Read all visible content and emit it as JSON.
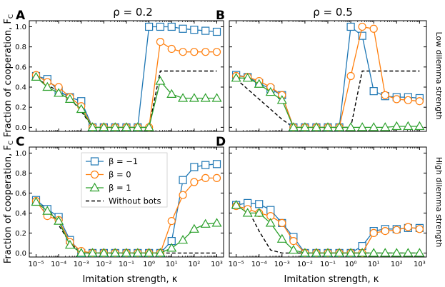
{
  "figure": {
    "column_titles": [
      "ρ = 0.2",
      "ρ = 0.5"
    ],
    "row_titles": [
      "Low dilemma strength",
      "High dilemma strength"
    ],
    "ylabel": "Fraction of cooperation, F",
    "ylabel_sub": "C",
    "xlabel": "Imitation strength, κ"
  },
  "legend": [
    {
      "name": "β = −1",
      "color": "#1f77b4",
      "marker": "square"
    },
    {
      "name": "β = 0",
      "color": "#ff7f0e",
      "marker": "circle"
    },
    {
      "name": "β = 1",
      "color": "#2ca02c",
      "marker": "triangle"
    },
    {
      "name": "Without bots",
      "color": "#000000",
      "marker": "dashed"
    }
  ],
  "colors": {
    "beta_neg1": "#1f77b4",
    "beta_0": "#ff7f0e",
    "beta_1": "#2ca02c",
    "baseline": "#000000"
  },
  "chart_data": [
    {
      "panel": "A",
      "type": "line",
      "x_scale": "log10",
      "x_exponents": [
        -5,
        -4.5,
        -4,
        -3.5,
        -3,
        -2.5,
        -2,
        -1.5,
        -1,
        -0.5,
        0,
        0.5,
        1,
        1.5,
        2,
        2.5,
        3
      ],
      "xlim": [
        -5.3,
        3.3
      ],
      "ylim": [
        -0.04,
        1.06
      ],
      "xticks": [
        "10⁻⁵",
        "10⁻⁴",
        "10⁻³",
        "10⁻²",
        "10⁻¹",
        "10⁰",
        "10¹",
        "10²",
        "10³"
      ],
      "yticks": [
        "0.0",
        "0.2",
        "0.4",
        "0.6",
        "0.8",
        "1.0"
      ],
      "series": [
        {
          "name": "β = −1",
          "values": [
            0.51,
            0.48,
            0.36,
            0.3,
            0.26,
            0.0,
            0.0,
            0.0,
            0.0,
            0.0,
            1.0,
            1.0,
            1.0,
            0.98,
            0.97,
            0.96,
            0.95
          ]
        },
        {
          "name": "β = 0",
          "values": [
            0.52,
            0.45,
            0.4,
            0.3,
            0.21,
            0.0,
            0.0,
            0.0,
            0.0,
            0.0,
            0.0,
            0.85,
            0.78,
            0.75,
            0.75,
            0.75,
            0.75
          ]
        },
        {
          "name": "β = 1",
          "values": [
            0.5,
            0.4,
            0.34,
            0.28,
            0.18,
            0.0,
            0.0,
            0.0,
            0.0,
            0.0,
            0.0,
            0.46,
            0.33,
            0.29,
            0.29,
            0.29,
            0.29
          ]
        },
        {
          "name": "Without bots",
          "values": [
            0.49,
            0.42,
            0.36,
            0.29,
            0.16,
            0.0,
            0.0,
            0.0,
            0.0,
            0.0,
            0.0,
            0.56,
            0.56,
            0.56,
            0.56,
            0.56,
            0.56
          ]
        }
      ]
    },
    {
      "panel": "B",
      "type": "line",
      "x_scale": "log10",
      "x_exponents": [
        -5,
        -4.5,
        -4,
        -3.5,
        -3,
        -2.5,
        -2,
        -1.5,
        -1,
        -0.5,
        0,
        0.5,
        1,
        1.5,
        2,
        2.5,
        3
      ],
      "xlim": [
        -5.3,
        3.3
      ],
      "ylim": [
        -0.04,
        1.06
      ],
      "xticks": [
        "10⁻⁵",
        "10⁻⁴",
        "10⁻³",
        "10⁻²",
        "10⁻¹",
        "10⁰",
        "10¹",
        "10²",
        "10³"
      ],
      "yticks": [
        "0.0",
        "0.2",
        "0.4",
        "0.6",
        "0.8",
        "1.0"
      ],
      "series": [
        {
          "name": "β = −1",
          "values": [
            0.52,
            0.5,
            0.44,
            0.38,
            0.32,
            0.0,
            0.0,
            0.0,
            0.0,
            0.0,
            1.0,
            0.91,
            0.36,
            0.31,
            0.3,
            0.3,
            0.29
          ]
        },
        {
          "name": "β = 0",
          "values": [
            0.51,
            0.5,
            0.46,
            0.4,
            0.32,
            0.0,
            0.0,
            0.0,
            0.0,
            0.0,
            0.51,
            1.0,
            0.98,
            0.32,
            0.28,
            0.27,
            0.26
          ]
        },
        {
          "name": "β = 1",
          "values": [
            0.49,
            0.49,
            0.43,
            0.35,
            0.27,
            0.0,
            0.0,
            0.0,
            0.0,
            0.0,
            0.0,
            0.0,
            0.0,
            0.0,
            0.01,
            0.01,
            0.01
          ]
        },
        {
          "name": "Without bots",
          "values": [
            0.48,
            0.38,
            0.28,
            0.18,
            0.08,
            0.0,
            0.0,
            0.0,
            0.0,
            0.0,
            0.0,
            0.56,
            0.56,
            0.56,
            0.56,
            0.56,
            0.56
          ]
        }
      ]
    },
    {
      "panel": "C",
      "type": "line",
      "x_scale": "log10",
      "x_exponents": [
        -5,
        -4.5,
        -4,
        -3.5,
        -3,
        -2.5,
        -2,
        -1.5,
        -1,
        -0.5,
        0,
        0.5,
        1,
        1.5,
        2,
        2.5,
        3
      ],
      "xlim": [
        -5.3,
        3.3
      ],
      "ylim": [
        -0.04,
        1.06
      ],
      "xticks": [
        "10⁻⁵",
        "10⁻⁴",
        "10⁻³",
        "10⁻²",
        "10⁻¹",
        "10⁰",
        "10¹",
        "10²",
        "10³"
      ],
      "yticks": [
        "0.0",
        "0.2",
        "0.4",
        "0.6",
        "0.8",
        "1.0"
      ],
      "series": [
        {
          "name": "β = −1",
          "values": [
            0.53,
            0.44,
            0.36,
            0.13,
            0.0,
            0.0,
            0.0,
            0.0,
            0.0,
            0.0,
            0.0,
            0.0,
            0.12,
            0.73,
            0.86,
            0.88,
            0.89
          ]
        },
        {
          "name": "β = 0",
          "values": [
            0.52,
            0.37,
            0.33,
            0.11,
            0.02,
            0.0,
            0.0,
            0.0,
            0.0,
            0.0,
            0.0,
            0.0,
            0.32,
            0.58,
            0.71,
            0.75,
            0.75
          ]
        },
        {
          "name": "β = 1",
          "values": [
            0.51,
            0.42,
            0.32,
            0.08,
            0.0,
            0.0,
            0.0,
            0.0,
            0.0,
            0.0,
            0.0,
            0.0,
            0.05,
            0.13,
            0.24,
            0.29,
            0.3
          ]
        },
        {
          "name": "Without bots",
          "values": [
            0.49,
            0.46,
            0.28,
            0.1,
            0.0,
            0.0,
            0.0,
            0.0,
            0.0,
            0.0,
            0.0,
            0.0,
            0.0,
            0.0,
            0.0,
            0.0,
            0.0
          ]
        }
      ]
    },
    {
      "panel": "D",
      "type": "line",
      "x_scale": "log10",
      "x_exponents": [
        -5,
        -4.5,
        -4,
        -3.5,
        -3,
        -2.5,
        -2,
        -1.5,
        -1,
        -0.5,
        0,
        0.5,
        1,
        1.5,
        2,
        2.5,
        3
      ],
      "xlim": [
        -5.3,
        3.3
      ],
      "ylim": [
        -0.04,
        1.06
      ],
      "xticks": [
        "10⁻⁵",
        "10⁻⁴",
        "10⁻³",
        "10⁻²",
        "10⁻¹",
        "10⁰",
        "10¹",
        "10²",
        "10³"
      ],
      "yticks": [
        "0.0",
        "0.2",
        "0.4",
        "0.6",
        "0.8",
        "1.0"
      ],
      "series": [
        {
          "name": "β = −1",
          "values": [
            0.48,
            0.5,
            0.49,
            0.43,
            0.3,
            0.16,
            0.0,
            0.0,
            0.0,
            0.0,
            0.0,
            0.07,
            0.22,
            0.24,
            0.24,
            0.25,
            0.25
          ]
        },
        {
          "name": "β = 0",
          "values": [
            0.47,
            0.44,
            0.4,
            0.37,
            0.3,
            0.12,
            0.0,
            0.0,
            0.0,
            0.0,
            0.0,
            0.0,
            0.2,
            0.22,
            0.23,
            0.26,
            0.24
          ]
        },
        {
          "name": "β = 1",
          "values": [
            0.48,
            0.4,
            0.4,
            0.3,
            0.14,
            0.03,
            0.0,
            0.0,
            0.0,
            0.0,
            0.0,
            0.0,
            0.0,
            0.0,
            0.0,
            0.0,
            0.0
          ]
        },
        {
          "name": "Without bots",
          "values": [
            0.47,
            0.44,
            0.22,
            0.03,
            0.0,
            0.0,
            0.0,
            0.0,
            0.0,
            0.0,
            0.0,
            0.0,
            0.0,
            0.0,
            0.0,
            0.0,
            0.0
          ]
        }
      ]
    }
  ]
}
